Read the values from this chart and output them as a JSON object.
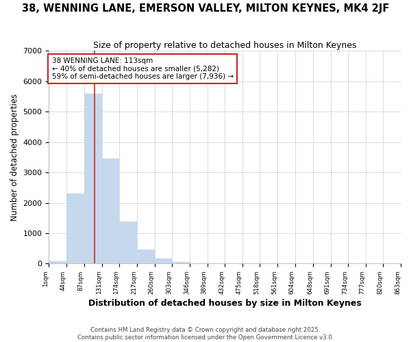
{
  "title": "38, WENNING LANE, EMERSON VALLEY, MILTON KEYNES, MK4 2JF",
  "subtitle": "Size of property relative to detached houses in Milton Keynes",
  "xlabel": "Distribution of detached houses by size in Milton Keynes",
  "ylabel": "Number of detached properties",
  "bar_color": "#c5d8ed",
  "bin_edges": [
    1,
    44,
    87,
    131,
    174,
    217,
    260,
    303,
    346,
    389,
    432,
    475,
    518,
    561,
    604,
    648,
    691,
    734,
    777,
    820,
    863
  ],
  "bar_heights": [
    70,
    2300,
    5580,
    3450,
    1380,
    460,
    170,
    60,
    10,
    2,
    1,
    0,
    0,
    0,
    0,
    0,
    0,
    0,
    0,
    0
  ],
  "tick_labels": [
    "1sqm",
    "44sqm",
    "87sqm",
    "131sqm",
    "174sqm",
    "217sqm",
    "260sqm",
    "303sqm",
    "346sqm",
    "389sqm",
    "432sqm",
    "475sqm",
    "518sqm",
    "561sqm",
    "604sqm",
    "648sqm",
    "691sqm",
    "734sqm",
    "777sqm",
    "820sqm",
    "863sqm"
  ],
  "property_size": 113,
  "property_label": "38 WENNING LANE: 113sqm",
  "annotation_line1": "← 40% of detached houses are smaller (5,282)",
  "annotation_line2": "59% of semi-detached houses are larger (7,936) →",
  "vline_color": "#cc2222",
  "annotation_box_edge": "#cc2222",
  "footer1": "Contains HM Land Registry data © Crown copyright and database right 2025.",
  "footer2": "Contains public sector information licensed under the Open Government Licence v3.0.",
  "ylim": [
    0,
    7000
  ],
  "background_color": "#ffffff",
  "grid_color": "#d0dce8"
}
